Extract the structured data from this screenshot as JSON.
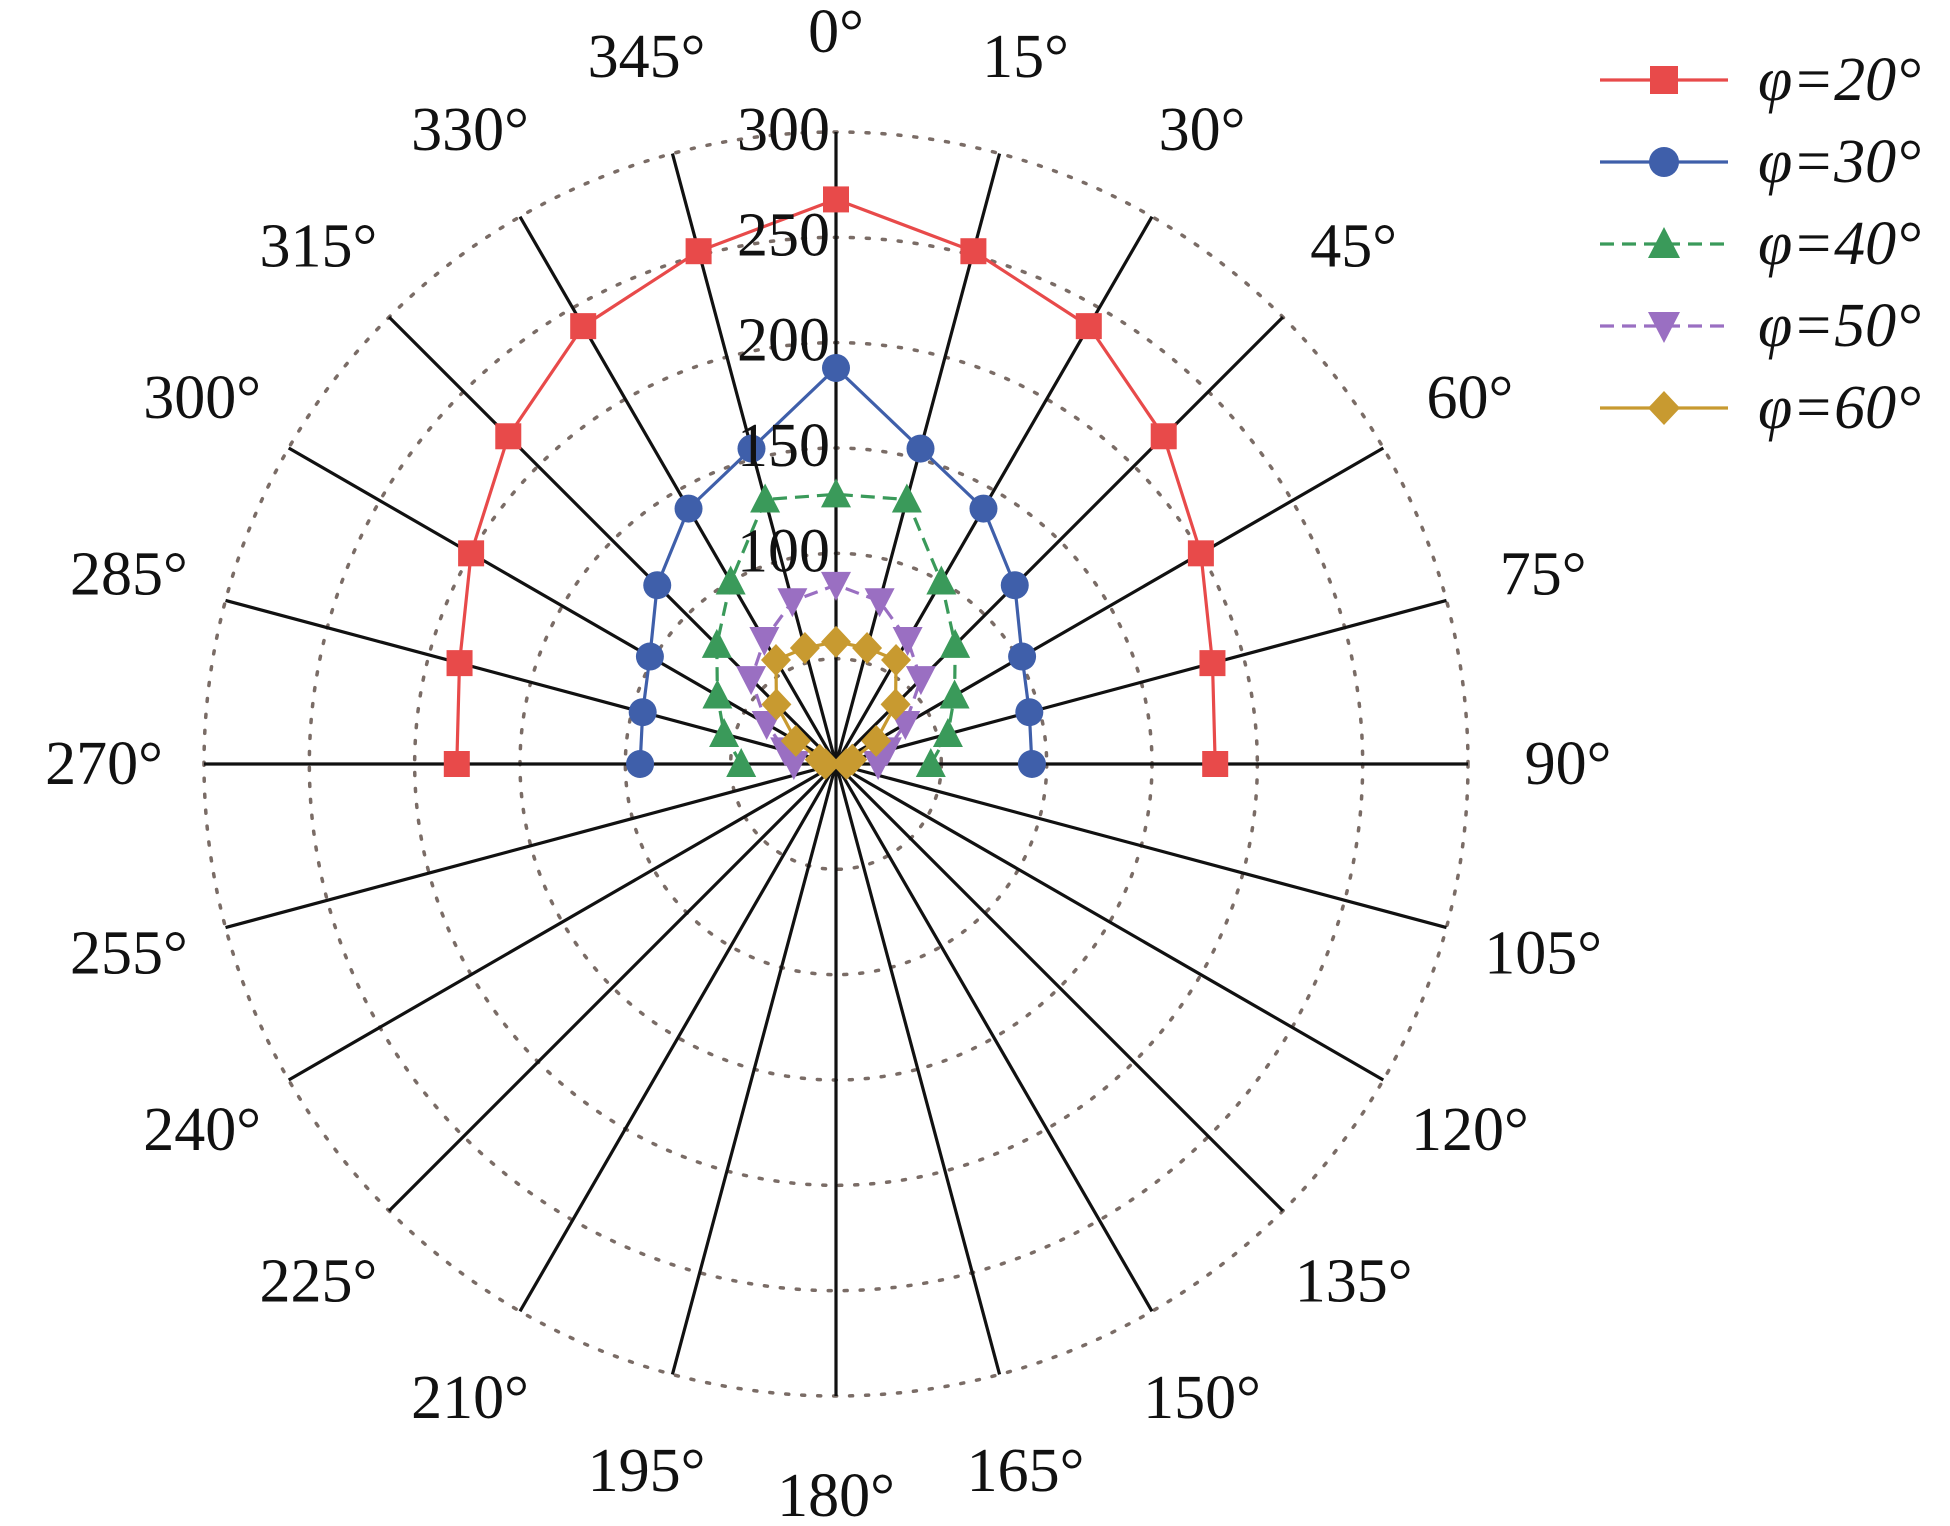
{
  "chart_data": {
    "type": "polar-line",
    "title": "",
    "angle_labels": [
      "0°",
      "15°",
      "30°",
      "45°",
      "60°",
      "75°",
      "90°",
      "105°",
      "120°",
      "135°",
      "150°",
      "165°",
      "180°",
      "195°",
      "210°",
      "225°",
      "240°",
      "255°",
      "270°",
      "285°",
      "300°",
      "315°",
      "330°",
      "345°"
    ],
    "radial_ticks": [
      100,
      150,
      200,
      250,
      300
    ],
    "radial_tick_labels": [
      "100",
      "150",
      "200",
      "250",
      "300"
    ],
    "radial_range": [
      0,
      300
    ],
    "grid": true,
    "legend_position": "top-right",
    "angles": [
      270,
      285,
      300,
      315,
      330,
      345,
      0,
      15,
      30,
      45,
      60,
      75,
      90
    ],
    "series": [
      {
        "name": "φ=20°",
        "color": "#e84a4a",
        "marker": "square",
        "dash": "solid",
        "values": [
          180,
          185,
          200,
          220,
          240,
          252,
          268,
          252,
          240,
          220,
          200,
          185,
          180
        ]
      },
      {
        "name": "φ=30°",
        "color": "#3f5faa",
        "marker": "circle",
        "dash": "solid",
        "values": [
          93,
          95,
          102,
          120,
          140,
          155,
          188,
          155,
          140,
          120,
          102,
          95,
          93
        ]
      },
      {
        "name": "φ=40°",
        "color": "#3a9a5a",
        "marker": "triangle-up",
        "dash": "dashed",
        "values": [
          45,
          55,
          65,
          80,
          100,
          130,
          128,
          130,
          100,
          80,
          65,
          55,
          45
        ]
      },
      {
        "name": "φ=50°",
        "color": "#9a6fc2",
        "marker": "triangle-down",
        "dash": "dashed",
        "values": [
          20,
          25,
          38,
          57,
          68,
          80,
          85,
          80,
          68,
          57,
          38,
          25,
          20
        ]
      },
      {
        "name": "φ=60°",
        "color": "#c89a30",
        "marker": "diamond",
        "dash": "solid",
        "values": [
          5,
          8,
          22,
          40,
          57,
          57,
          58,
          57,
          57,
          40,
          22,
          8,
          5
        ]
      }
    ]
  }
}
